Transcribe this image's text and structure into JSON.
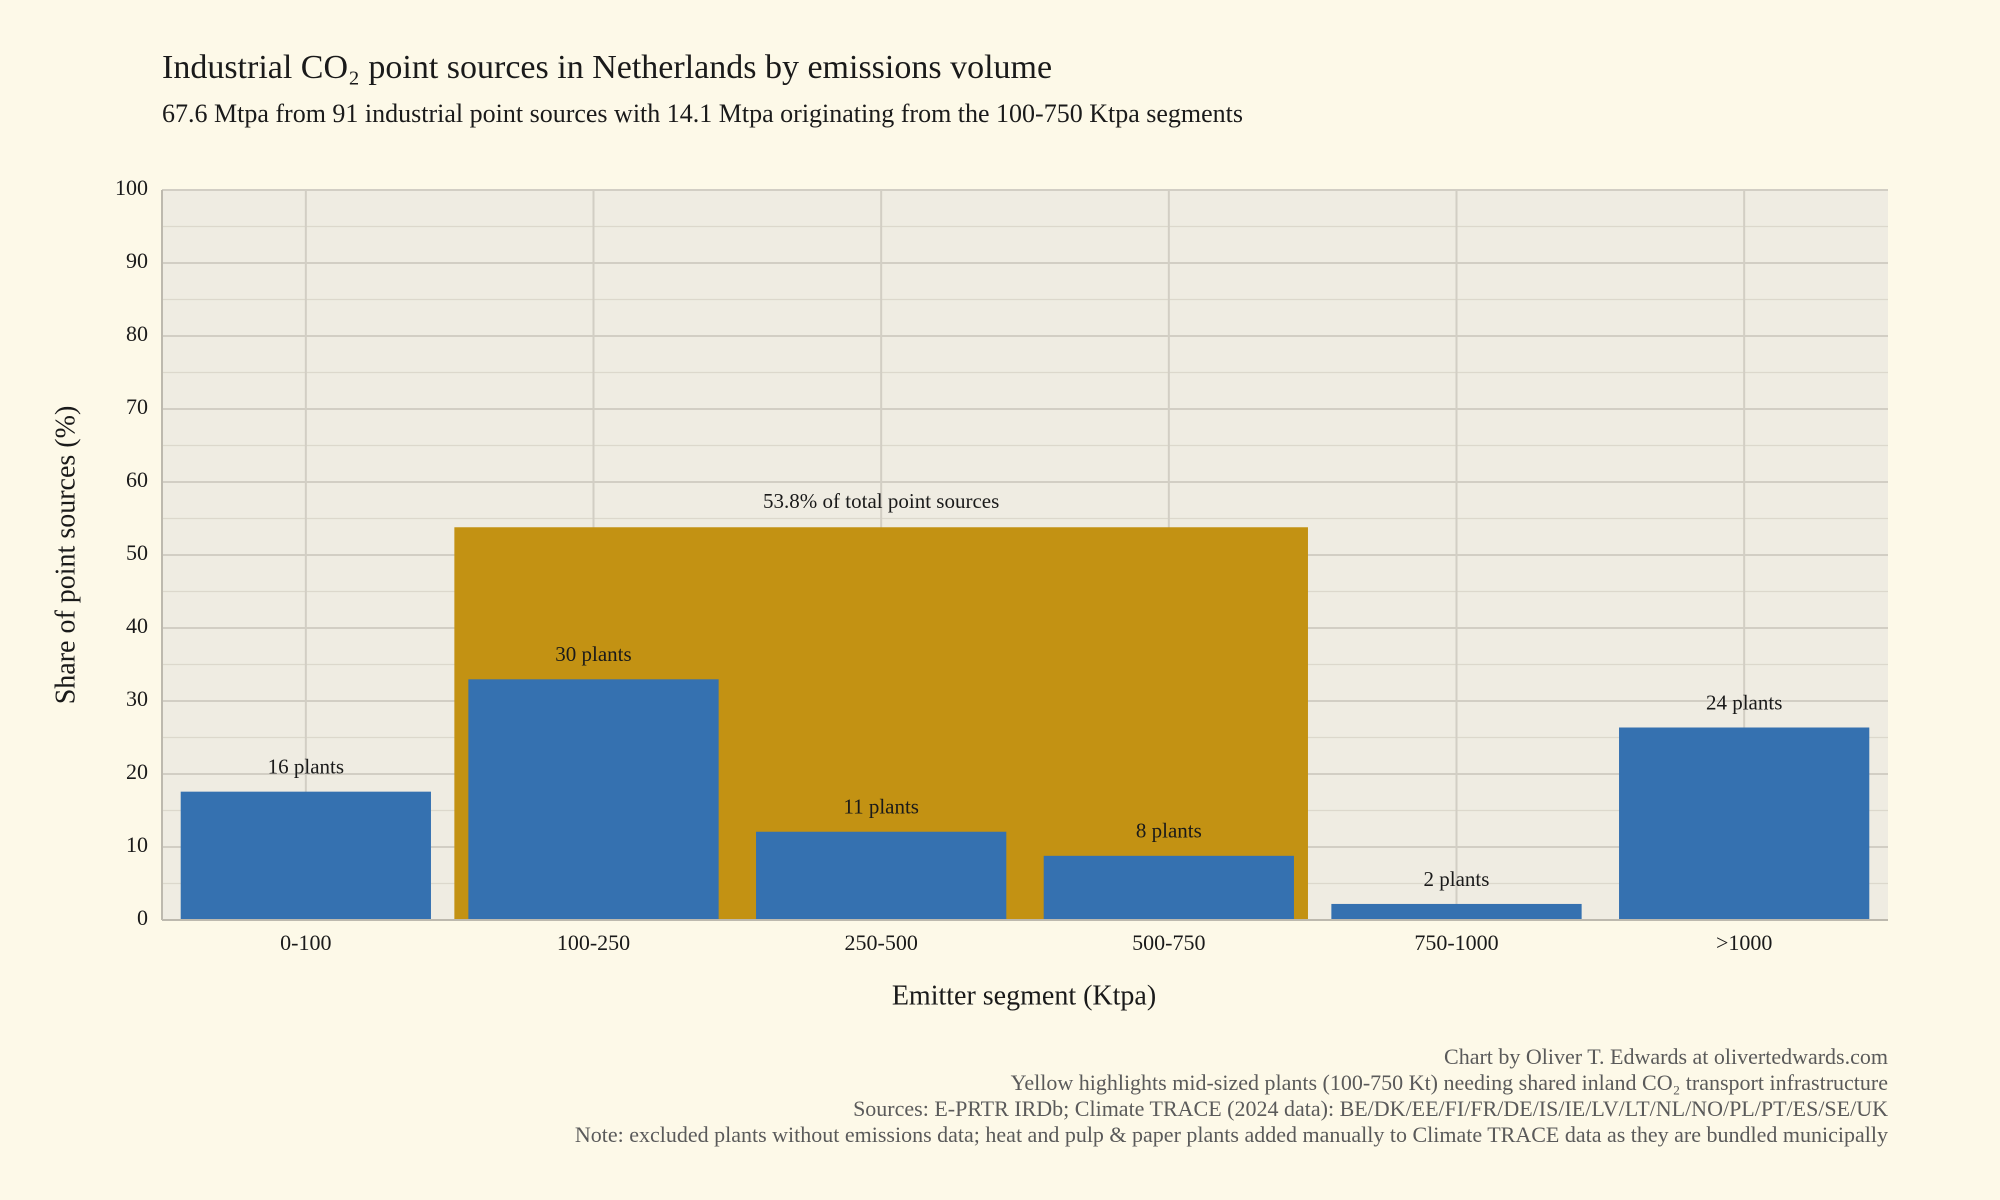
{
  "chart_data": {
    "type": "bar",
    "title": "Industrial CO₂ point sources in Netherlands by emissions volume",
    "subtitle": "67.6 Mtpa from 91 industrial point sources with 14.1 Mtpa originating from the 100-750 Ktpa segments",
    "x_label": "Emitter segment (Ktpa)",
    "y_label": "Share of point sources (%)",
    "categories": [
      "0-100",
      "100-250",
      "250-500",
      "500-750",
      "750-1000",
      ">1000"
    ],
    "values": [
      17.58,
      32.97,
      12.09,
      8.79,
      2.2,
      26.37
    ],
    "bar_annotations": [
      "16 plants",
      "30 plants",
      "11 plants",
      "8 plants",
      "2 plants",
      "24 plants"
    ],
    "color": "#3571b0",
    "highlight": {
      "value": 53.8,
      "label": "53.8% of total point sources",
      "from": "100-250",
      "to": "500-750",
      "color": "#c39213"
    },
    "ylim": [
      0,
      100
    ],
    "yticks": [
      0,
      10,
      20,
      30,
      40,
      50,
      60,
      70,
      80,
      90,
      100
    ],
    "yminor": [
      5,
      15,
      25,
      35,
      45,
      55,
      65,
      75,
      85,
      95
    ],
    "grid": true,
    "footer": [
      "Chart by Oliver T. Edwards at olivertedwards.com",
      "Yellow highlights mid-sized plants (100-750 Kt) needing shared inland CO₂ transport infrastructure",
      "Sources: E-PRTR IRDb; Climate TRACE (2024 data): BE/DK/EE/FI/FR/DE/IS/IE/LV/LT/NL/NO/PL/PT/ES/SE/UK",
      "Note: excluded plants without emissions data; heat and pulp & paper plants added manually to Climate TRACE data as they are bundled municipally"
    ]
  }
}
